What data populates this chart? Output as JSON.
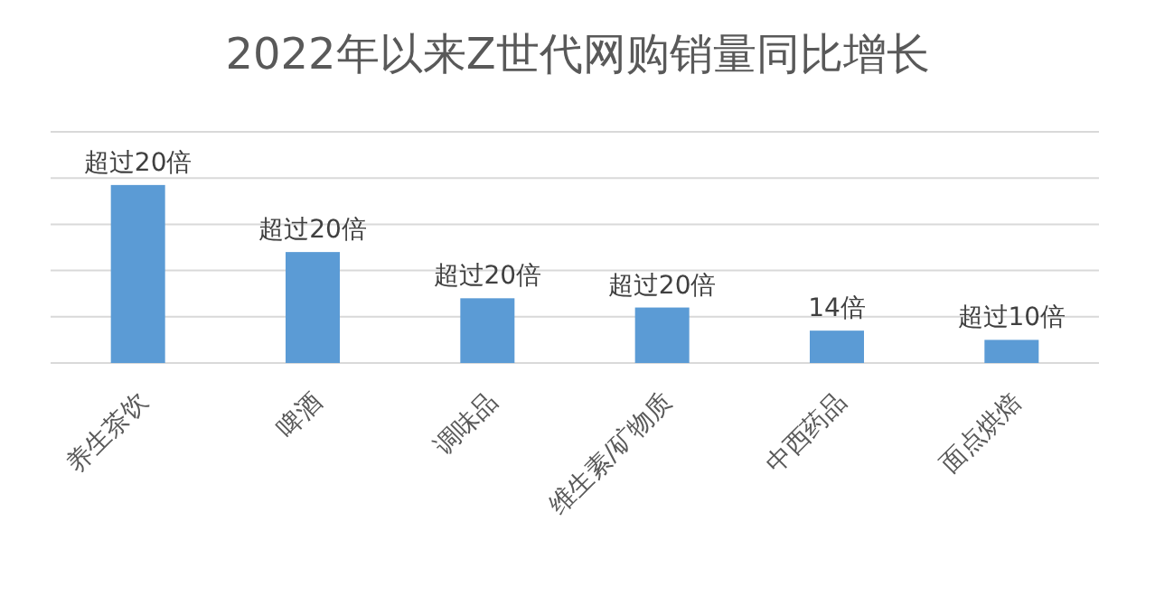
{
  "chart_data": {
    "type": "bar",
    "title": "2022年以来Z世代网购销量同比增长",
    "categories": [
      "养生茶饮",
      "啤酒",
      "调味品",
      "维生素/矿物质",
      "中西药品",
      "面点烘焙"
    ],
    "values": [
      77,
      48,
      28,
      24,
      14,
      10
    ],
    "value_labels": [
      "超过20倍",
      "超过20倍",
      "超过20倍",
      "超过20倍",
      "14倍",
      "超过10倍"
    ],
    "color": "#5b9bd5",
    "ylim": [
      0,
      100
    ],
    "yticks": [
      {
        "value": 0,
        "label": null
      },
      {
        "value": 20,
        "label": null
      },
      {
        "value": 40,
        "label": null
      },
      {
        "value": 60,
        "label": null
      },
      {
        "value": 80,
        "label": null
      },
      {
        "value": 100,
        "label": null
      }
    ],
    "tick_labels": "x",
    "grid": "y"
  }
}
